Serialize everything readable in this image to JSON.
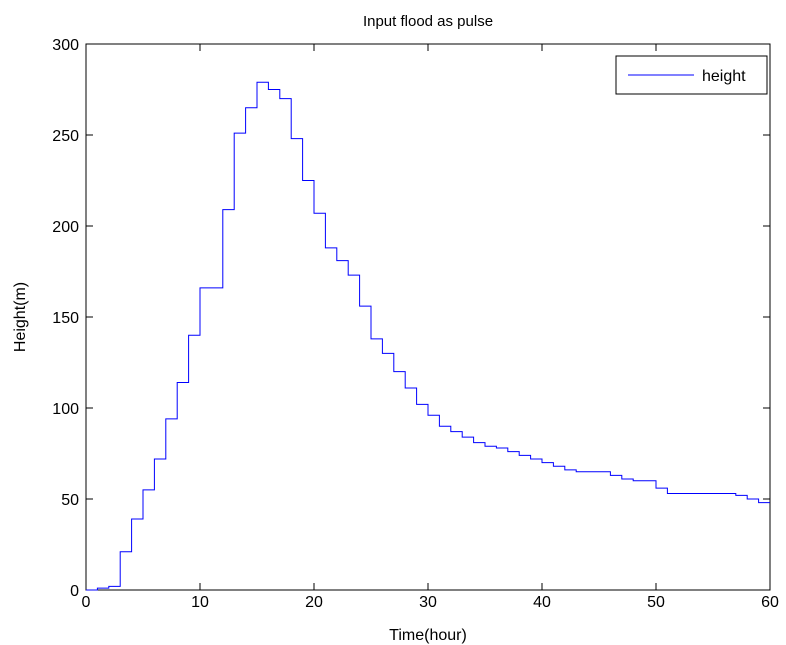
{
  "chart_data": {
    "type": "line",
    "title": "Input flood as pulse",
    "xlabel": "Time(hour)",
    "ylabel": "Height(m)",
    "xlim": [
      0,
      60
    ],
    "ylim": [
      0,
      300
    ],
    "xticks": [
      0,
      10,
      20,
      30,
      40,
      50,
      60
    ],
    "yticks": [
      0,
      50,
      100,
      150,
      200,
      250,
      300
    ],
    "grid": false,
    "legend": "top-right",
    "step": true,
    "series": [
      {
        "name": "height",
        "color": "#0000ff",
        "x": [
          0,
          1,
          2,
          3,
          4,
          5,
          6,
          7,
          8,
          9,
          10,
          11,
          12,
          13,
          14,
          15,
          16,
          17,
          18,
          19,
          20,
          21,
          22,
          23,
          24,
          25,
          26,
          27,
          28,
          29,
          30,
          31,
          32,
          33,
          34,
          35,
          36,
          37,
          38,
          39,
          40,
          41,
          42,
          43,
          44,
          45,
          46,
          47,
          48,
          49,
          50,
          51,
          52,
          53,
          54,
          55,
          56,
          57,
          58,
          59,
          60
        ],
        "y": [
          0,
          1,
          2,
          21,
          39,
          55,
          72,
          94,
          114,
          140,
          166,
          166,
          209,
          251,
          265,
          279,
          275,
          270,
          248,
          225,
          207,
          188,
          181,
          173,
          156,
          138,
          130,
          120,
          111,
          102,
          96,
          90,
          87,
          84,
          81,
          79,
          78,
          76,
          74,
          72,
          70,
          68,
          66,
          65,
          65,
          65,
          63,
          61,
          60,
          60,
          56,
          53,
          53,
          53,
          53,
          53,
          53,
          52,
          50,
          48,
          48
        ]
      }
    ]
  }
}
